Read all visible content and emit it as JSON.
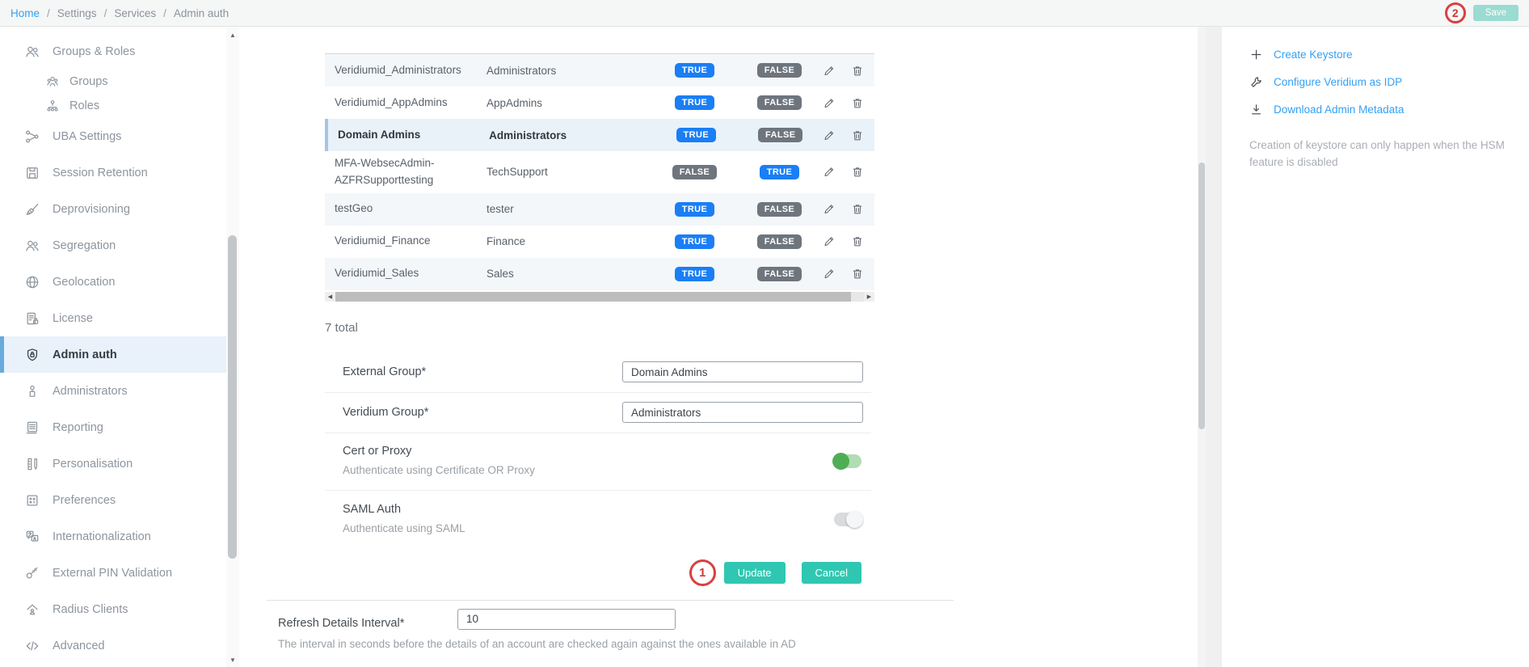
{
  "breadcrumb": {
    "items": [
      "Home",
      "Settings",
      "Services",
      "Admin auth"
    ],
    "separator": "/"
  },
  "topbar": {
    "save_label": "Save",
    "annotation_2": "2"
  },
  "sidebar": {
    "items": [
      {
        "label": "Groups & Roles",
        "icon": "people",
        "sub": false,
        "active": false
      },
      {
        "label": "Groups",
        "icon": "group",
        "sub": true,
        "active": false
      },
      {
        "label": "Roles",
        "icon": "org",
        "sub": true,
        "active": false
      },
      {
        "label": "UBA Settings",
        "icon": "share",
        "sub": false,
        "active": false
      },
      {
        "label": "Session Retention",
        "icon": "disk",
        "sub": false,
        "active": false
      },
      {
        "label": "Deprovisioning",
        "icon": "broom",
        "sub": false,
        "active": false
      },
      {
        "label": "Segregation",
        "icon": "people",
        "sub": false,
        "active": false
      },
      {
        "label": "Geolocation",
        "icon": "globe",
        "sub": false,
        "active": false
      },
      {
        "label": "License",
        "icon": "doclock",
        "sub": false,
        "active": false
      },
      {
        "label": "Admin auth",
        "icon": "shieldlock",
        "sub": false,
        "active": true
      },
      {
        "label": "Administrators",
        "icon": "personkey",
        "sub": false,
        "active": false
      },
      {
        "label": "Reporting",
        "icon": "doclines",
        "sub": false,
        "active": false
      },
      {
        "label": "Personalisation",
        "icon": "ruler",
        "sub": false,
        "active": false
      },
      {
        "label": "Preferences",
        "icon": "grid",
        "sub": false,
        "active": false
      },
      {
        "label": "Internationalization",
        "icon": "translate",
        "sub": false,
        "active": false
      },
      {
        "label": "External PIN Validation",
        "icon": "key",
        "sub": false,
        "active": false
      },
      {
        "label": "Radius Clients",
        "icon": "homeperson",
        "sub": false,
        "active": false
      },
      {
        "label": "Advanced",
        "icon": "code",
        "sub": false,
        "active": false
      }
    ]
  },
  "table": {
    "rows": [
      {
        "external": "Veridiumid_Administrators",
        "veridium": "Administrators",
        "value1": "TRUE",
        "value2": "FALSE",
        "selected": false
      },
      {
        "external": "Veridiumid_AppAdmins",
        "veridium": "AppAdmins",
        "value1": "TRUE",
        "value2": "FALSE",
        "selected": false
      },
      {
        "external": "Domain Admins",
        "veridium": "Administrators",
        "value1": "TRUE",
        "value2": "FALSE",
        "selected": true
      },
      {
        "external": "MFA-WebsecAdmin-AZFRSupporttesting",
        "veridium": "TechSupport",
        "value1": "FALSE",
        "value2": "TRUE",
        "selected": false
      },
      {
        "external": "testGeo",
        "veridium": "tester",
        "value1": "TRUE",
        "value2": "FALSE",
        "selected": false
      },
      {
        "external": "Veridiumid_Finance",
        "veridium": "Finance",
        "value1": "TRUE",
        "value2": "FALSE",
        "selected": false
      },
      {
        "external": "Veridiumid_Sales",
        "veridium": "Sales",
        "value1": "TRUE",
        "value2": "FALSE",
        "selected": false
      }
    ],
    "total": "7 total"
  },
  "form": {
    "fields": [
      {
        "type": "text",
        "label": "External Group*",
        "value": "Domain Admins"
      },
      {
        "type": "text",
        "label": "Veridium Group*",
        "value": "Administrators"
      },
      {
        "type": "toggle",
        "label": "Cert or Proxy",
        "description": "Authenticate using Certificate OR Proxy",
        "on": true
      },
      {
        "type": "toggle",
        "label": "SAML Auth",
        "description": "Authenticate using SAML",
        "on": false
      }
    ],
    "update_label": "Update",
    "cancel_label": "Cancel",
    "annotation_1": "1"
  },
  "refresh": {
    "label": "Refresh Details Interval*",
    "value": "10",
    "description": "The interval in seconds before the details of an account are checked again against the ones available in AD"
  },
  "right_panel": {
    "actions": [
      {
        "label": "Create Keystore",
        "icon": "plus"
      },
      {
        "label": "Configure Veridium as IDP",
        "icon": "wrench"
      },
      {
        "label": "Download Admin Metadata",
        "icon": "download"
      }
    ],
    "note": "Creation of keystore can only happen when the HSM feature is disabled"
  },
  "colors": {
    "badge_true": "#1a7ef5",
    "badge_false": "#6e757d",
    "link_blue": "#34a0f4",
    "accent_teal": "#2fc7b2",
    "save_disabled_teal": "#9bdbd1",
    "annotation_red": "#d84040",
    "toggle_on": "#4fae55",
    "sidebar_active_bar": "#68abdd",
    "sidebar_active_bg": "#e9f2fa"
  }
}
